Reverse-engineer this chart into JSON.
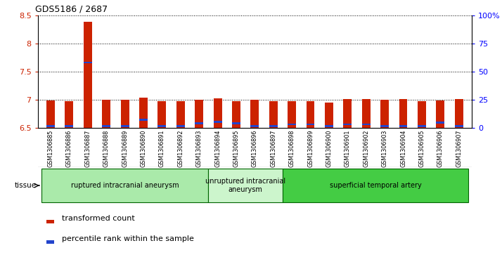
{
  "title": "GDS5186 / 2687",
  "samples": [
    "GSM1306885",
    "GSM1306886",
    "GSM1306887",
    "GSM1306888",
    "GSM1306889",
    "GSM1306890",
    "GSM1306891",
    "GSM1306892",
    "GSM1306893",
    "GSM1306894",
    "GSM1306895",
    "GSM1306896",
    "GSM1306897",
    "GSM1306898",
    "GSM1306899",
    "GSM1306900",
    "GSM1306901",
    "GSM1306902",
    "GSM1306903",
    "GSM1306904",
    "GSM1306905",
    "GSM1306906",
    "GSM1306907"
  ],
  "red_values": [
    6.98,
    6.97,
    8.38,
    6.99,
    7.0,
    7.03,
    6.97,
    6.97,
    7.0,
    7.02,
    6.97,
    6.99,
    6.97,
    6.97,
    6.97,
    6.95,
    7.01,
    7.01,
    6.99,
    7.01,
    6.97,
    6.98,
    7.01
  ],
  "blue_values": [
    6.503,
    6.503,
    7.64,
    6.503,
    6.503,
    6.62,
    6.503,
    6.503,
    6.56,
    6.58,
    6.56,
    6.503,
    6.503,
    6.54,
    6.54,
    6.503,
    6.54,
    6.54,
    6.503,
    6.503,
    6.503,
    6.57,
    6.503
  ],
  "ylim_left": [
    6.5,
    8.5
  ],
  "ylim_right": [
    0,
    100
  ],
  "yticks_left": [
    6.5,
    7.0,
    7.5,
    8.0,
    8.5
  ],
  "ytick_labels_left": [
    "6.5",
    "7",
    "7.5",
    "8",
    "8.5"
  ],
  "yticks_right": [
    0,
    25,
    50,
    75,
    100
  ],
  "ytick_labels_right": [
    "0",
    "25",
    "50",
    "75",
    "100%"
  ],
  "groups": [
    {
      "label": "ruptured intracranial aneurysm",
      "start": 0,
      "end": 9,
      "color": "#aaeaaa"
    },
    {
      "label": "unruptured intracranial\naneurysm",
      "start": 9,
      "end": 13,
      "color": "#ccf5cc"
    },
    {
      "label": "superficial temporal artery",
      "start": 13,
      "end": 23,
      "color": "#44cc44"
    }
  ],
  "bar_width": 0.45,
  "base": 6.5,
  "red_color": "#CC2200",
  "blue_color": "#2244CC",
  "plot_bg": "#FFFFFF",
  "xtick_bg": "#DDDDDD",
  "tissue_label": "tissue",
  "legend_red": "transformed count",
  "legend_blue": "percentile rank within the sample"
}
